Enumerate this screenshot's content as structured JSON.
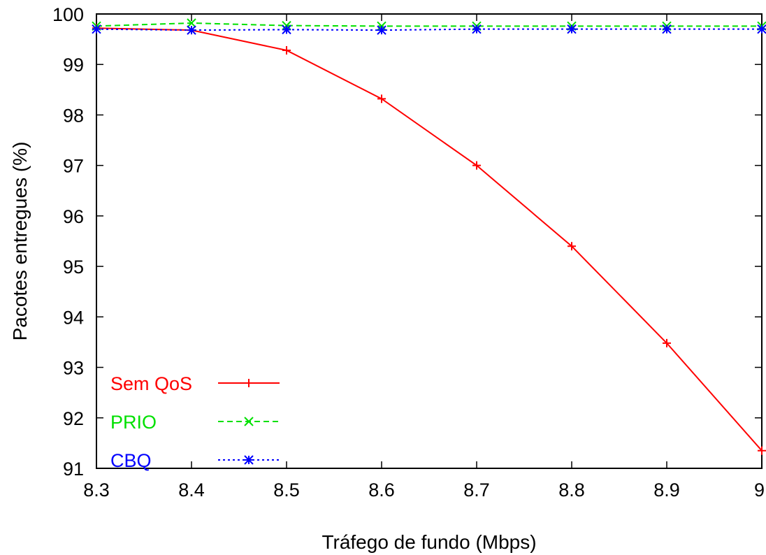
{
  "chart_data": {
    "type": "line",
    "title": "",
    "xlabel": "Tráfego de fundo (Mbps)",
    "ylabel": "Pacotes entregues (%)",
    "xlim": [
      8.3,
      9.0
    ],
    "ylim": [
      91,
      100
    ],
    "x_ticks": [
      "8.3",
      "8.4",
      "8.5",
      "8.6",
      "8.7",
      "8.8",
      "8.9",
      "9"
    ],
    "y_ticks": [
      "91",
      "92",
      "93",
      "94",
      "95",
      "96",
      "97",
      "98",
      "99",
      "100"
    ],
    "grid": false,
    "legend_position": "bottom-left",
    "x": [
      8.3,
      8.4,
      8.5,
      8.6,
      8.7,
      8.8,
      8.9,
      9.0
    ],
    "series": [
      {
        "name": "Sem QoS",
        "color": "#ff0000",
        "marker": "plus",
        "dash": "solid",
        "values": [
          99.72,
          99.68,
          99.28,
          98.32,
          97.0,
          95.4,
          93.48,
          91.35
        ]
      },
      {
        "name": "PRIO",
        "color": "#00e000",
        "marker": "cross",
        "dash": "dashed",
        "values": [
          99.76,
          99.82,
          99.77,
          99.76,
          99.76,
          99.76,
          99.76,
          99.76
        ]
      },
      {
        "name": "CBQ",
        "color": "#0000ff",
        "marker": "star",
        "dash": "dotted",
        "values": [
          99.7,
          99.68,
          99.69,
          99.68,
          99.7,
          99.7,
          99.7,
          99.7
        ]
      }
    ]
  }
}
